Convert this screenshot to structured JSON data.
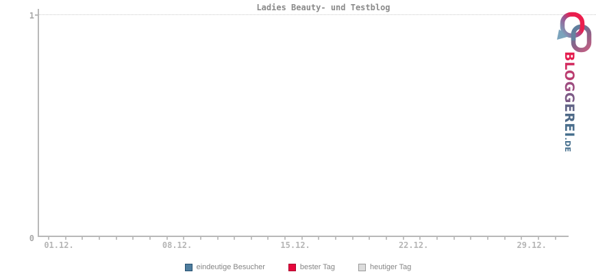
{
  "chart_data": {
    "type": "line",
    "title": "Ladies Beauty- und Testblog",
    "xlabel": "",
    "ylabel": "",
    "x_tick_labels": [
      "01.12.",
      "08.12.",
      "15.12.",
      "22.12.",
      "29.12."
    ],
    "x_tick_interval_days": 1,
    "x_label_every_n_days": 7,
    "y_tick_labels": [
      "0",
      "1"
    ],
    "ylim": [
      0,
      1
    ],
    "grid": {
      "dotted_y_gridlines_at": [
        1
      ]
    },
    "legend_position": "bottom",
    "series": [
      {
        "name": "eindeutige Besucher",
        "fill": "#4e7d9e",
        "border": "#255070",
        "values": []
      },
      {
        "name": "bester Tag",
        "fill": "#e6073c",
        "border": "#a9002c",
        "values": []
      },
      {
        "name": "heutiger Tag",
        "fill": "#dcdcdc",
        "border": "#9a9a9a",
        "values": []
      }
    ],
    "plotted_points": "none — chart area is empty"
  },
  "logo": {
    "name": "BLOGGEREI.DE",
    "text": "BLOGGEREI",
    "tld": ".DE",
    "letter_colors": [
      "#e51e4f",
      "#d32b5f",
      "#bb3d70",
      "#9d4d80",
      "#7c5a86",
      "#606386",
      "#4f6a88",
      "#4a6e8c",
      "#47708e"
    ],
    "tld_color": "#47708e",
    "mark_colors": {
      "crimson": "#ec1e4d",
      "steel_blue": "#7ba3bc",
      "slate": "#5e7f9e",
      "mauve": "#bb5f84"
    }
  }
}
